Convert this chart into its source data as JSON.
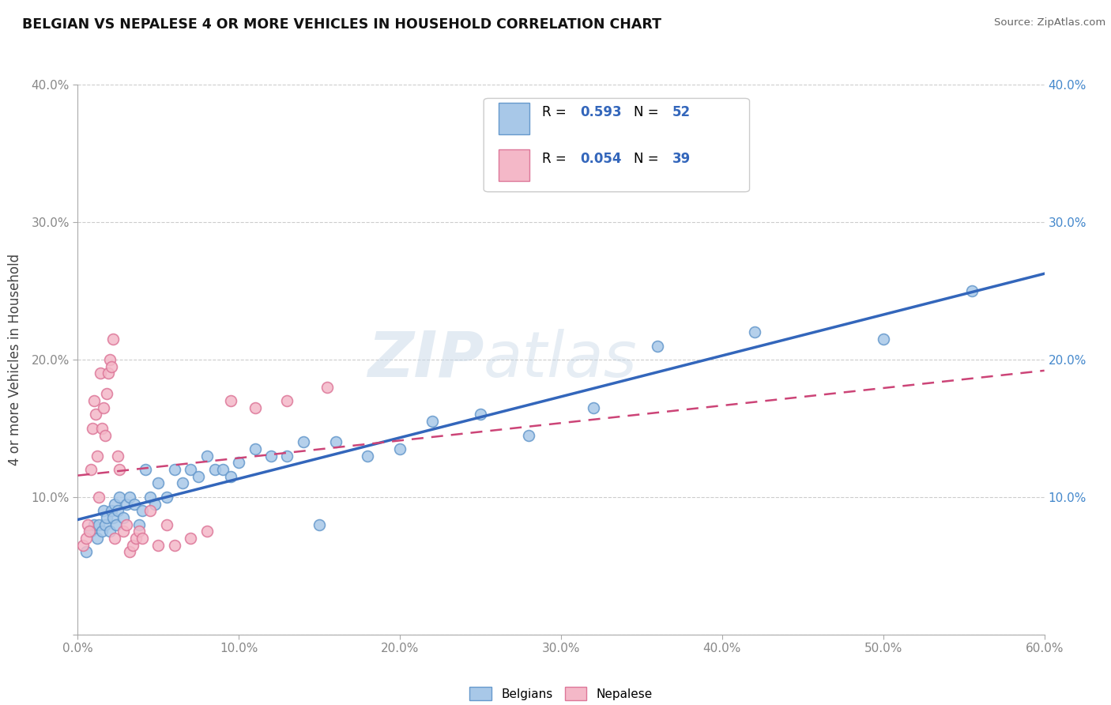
{
  "title": "BELGIAN VS NEPALESE 4 OR MORE VEHICLES IN HOUSEHOLD CORRELATION CHART",
  "source": "Source: ZipAtlas.com",
  "ylabel": "4 or more Vehicles in Household",
  "xlim": [
    0.0,
    0.6
  ],
  "ylim": [
    0.0,
    0.4
  ],
  "xticks": [
    0.0,
    0.1,
    0.2,
    0.3,
    0.4,
    0.5,
    0.6
  ],
  "yticks": [
    0.0,
    0.1,
    0.2,
    0.3,
    0.4
  ],
  "xticklabels": [
    "0.0%",
    "10.0%",
    "20.0%",
    "30.0%",
    "40.0%",
    "50.0%",
    "60.0%"
  ],
  "yticklabels_left": [
    "",
    "10.0%",
    "20.0%",
    "30.0%",
    "40.0%"
  ],
  "yticklabels_right": [
    "",
    "10.0%",
    "20.0%",
    "30.0%",
    "40.0%"
  ],
  "belgian_color": "#a8c8e8",
  "nepalese_color": "#f4b8c8",
  "belgian_edge_color": "#6699cc",
  "nepalese_edge_color": "#dd7799",
  "belgian_line_color": "#3366bb",
  "nepalese_line_color": "#cc4477",
  "belgian_R": "0.593",
  "belgian_N": "52",
  "nepalese_R": "0.054",
  "nepalese_N": "39",
  "watermark_zip": "ZIP",
  "watermark_atlas": "atlas",
  "legend_R_color": "#3366bb",
  "legend_N_color": "#3366bb",
  "tick_color_left": "#888888",
  "tick_color_right": "#4488cc",
  "tick_color_bottom": "#888888",
  "belgian_x": [
    0.005,
    0.008,
    0.01,
    0.012,
    0.013,
    0.015,
    0.016,
    0.017,
    0.018,
    0.02,
    0.021,
    0.022,
    0.023,
    0.024,
    0.025,
    0.026,
    0.028,
    0.03,
    0.032,
    0.035,
    0.038,
    0.04,
    0.042,
    0.045,
    0.048,
    0.05,
    0.055,
    0.06,
    0.065,
    0.07,
    0.075,
    0.08,
    0.085,
    0.09,
    0.095,
    0.1,
    0.11,
    0.12,
    0.13,
    0.14,
    0.15,
    0.16,
    0.18,
    0.2,
    0.22,
    0.25,
    0.28,
    0.32,
    0.36,
    0.42,
    0.5,
    0.555
  ],
  "belgian_y": [
    0.06,
    0.075,
    0.08,
    0.07,
    0.08,
    0.075,
    0.09,
    0.08,
    0.085,
    0.075,
    0.09,
    0.085,
    0.095,
    0.08,
    0.09,
    0.1,
    0.085,
    0.095,
    0.1,
    0.095,
    0.08,
    0.09,
    0.12,
    0.1,
    0.095,
    0.11,
    0.1,
    0.12,
    0.11,
    0.12,
    0.115,
    0.13,
    0.12,
    0.12,
    0.115,
    0.125,
    0.135,
    0.13,
    0.13,
    0.14,
    0.08,
    0.14,
    0.13,
    0.135,
    0.155,
    0.16,
    0.145,
    0.165,
    0.21,
    0.22,
    0.215,
    0.25
  ],
  "nepalese_x": [
    0.003,
    0.005,
    0.006,
    0.007,
    0.008,
    0.009,
    0.01,
    0.011,
    0.012,
    0.013,
    0.014,
    0.015,
    0.016,
    0.017,
    0.018,
    0.019,
    0.02,
    0.021,
    0.022,
    0.023,
    0.025,
    0.026,
    0.028,
    0.03,
    0.032,
    0.034,
    0.036,
    0.038,
    0.04,
    0.045,
    0.05,
    0.055,
    0.06,
    0.07,
    0.08,
    0.095,
    0.11,
    0.13,
    0.155
  ],
  "nepalese_y": [
    0.065,
    0.07,
    0.08,
    0.075,
    0.12,
    0.15,
    0.17,
    0.16,
    0.13,
    0.1,
    0.19,
    0.15,
    0.165,
    0.145,
    0.175,
    0.19,
    0.2,
    0.195,
    0.215,
    0.07,
    0.13,
    0.12,
    0.075,
    0.08,
    0.06,
    0.065,
    0.07,
    0.075,
    0.07,
    0.09,
    0.065,
    0.08,
    0.065,
    0.07,
    0.075,
    0.17,
    0.165,
    0.17,
    0.18
  ]
}
